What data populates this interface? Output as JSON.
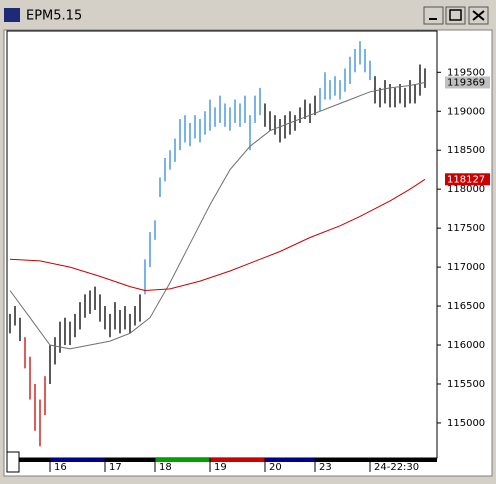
{
  "window": {
    "title": "EPM5.15"
  },
  "chart_data": {
    "type": "ohlc",
    "high": [
      116400,
      116500,
      116350,
      116100,
      115850,
      115500,
      115300,
      115600,
      116000,
      116100,
      116300,
      116350,
      116300,
      116400,
      116550,
      116650,
      116700,
      116750,
      116650,
      116500,
      116400,
      116550,
      116450,
      116500,
      116400,
      116500,
      116650,
      117100,
      117450,
      117600,
      118150,
      118400,
      118500,
      118650,
      118900,
      118950,
      118850,
      118950,
      118900,
      119000,
      119150,
      119050,
      119200,
      119100,
      119050,
      119150,
      119100,
      119200,
      118950,
      119200,
      119300,
      119100,
      119000,
      118950,
      118900,
      118950,
      119000,
      118950,
      119050,
      119150,
      119100,
      119200,
      119300,
      119500,
      119400,
      119450,
      119400,
      119550,
      119700,
      119800,
      119900,
      119800,
      119650,
      119450,
      119300,
      119400,
      119350,
      119300,
      119350,
      119300,
      119400,
      119350,
      119600,
      119550
    ],
    "low": [
      116150,
      116250,
      116050,
      115700,
      115300,
      114900,
      114700,
      115100,
      115500,
      115750,
      115900,
      116000,
      116000,
      116100,
      116200,
      116350,
      116400,
      116450,
      116300,
      116200,
      116100,
      116200,
      116150,
      116200,
      116150,
      116250,
      116300,
      116650,
      117000,
      117350,
      117900,
      118100,
      118250,
      118350,
      118500,
      118600,
      118550,
      118650,
      118600,
      118700,
      118750,
      118800,
      118850,
      118800,
      118750,
      118850,
      118800,
      118850,
      118500,
      118850,
      118950,
      118800,
      118750,
      118700,
      118600,
      118650,
      118700,
      118750,
      118850,
      118900,
      118850,
      118950,
      119000,
      119150,
      119150,
      119200,
      119150,
      119250,
      119350,
      119500,
      119600,
      119500,
      119400,
      119100,
      119050,
      119100,
      119050,
      119050,
      119100,
      119050,
      119100,
      119100,
      119200,
      119300
    ],
    "bar_colors": "kkkrrrrrkkkkkkkkkkkkkkkkkkkbbbbbbbbbbbbbbbbbbbbbbbbkkkkkkkkkkkbbbbbbbbbbbkkkkkkkkkkk",
    "palette": {
      "k": "#000000",
      "r": "#d40000",
      "b": "#2f8be0"
    },
    "lines": [
      {
        "color": "#707070",
        "x": [
          0,
          4,
          8,
          12,
          16,
          20,
          24,
          28,
          32,
          36,
          40,
          44,
          48,
          52,
          56,
          60,
          64,
          68,
          72,
          76,
          80,
          83
        ],
        "values": [
          116700,
          116350,
          116000,
          115950,
          116000,
          116050,
          116150,
          116350,
          116800,
          117300,
          117800,
          118250,
          118550,
          118750,
          118850,
          118950,
          119050,
          119150,
          119250,
          119300,
          119330,
          119369
        ]
      },
      {
        "color": "#cc0000",
        "x": [
          0,
          6,
          12,
          18,
          24,
          27,
          32,
          38,
          44,
          48,
          54,
          60,
          66,
          70,
          76,
          80,
          83
        ],
        "values": [
          117100,
          117080,
          117000,
          116880,
          116750,
          116700,
          116720,
          116820,
          116950,
          117050,
          117200,
          117380,
          117530,
          117650,
          117850,
          118000,
          118127
        ]
      }
    ],
    "markers": [
      {
        "value": 119369,
        "color": "#c0c0c0"
      },
      {
        "value": 118127,
        "color": "#cc0000"
      }
    ],
    "xlim": [
      -0.4,
      85.4
    ],
    "xticks": [
      {
        "value": 8,
        "label": "16"
      },
      {
        "value": 19,
        "label": "17"
      },
      {
        "value": 29,
        "label": "18"
      },
      {
        "value": 40,
        "label": "19"
      },
      {
        "value": 51,
        "label": "20"
      },
      {
        "value": 61,
        "label": "23"
      },
      {
        "value": 72,
        "label": "24-22:30"
      }
    ],
    "xtick_colors": [
      "#00008b",
      "#000000",
      "#00a000",
      "#cc0000",
      "#00008b",
      "#000000",
      "#000000"
    ],
    "ylim": [
      114550,
      120030
    ],
    "yticks": [
      115000,
      115500,
      116000,
      116500,
      117000,
      117500,
      118000,
      118500,
      119000,
      119500
    ]
  }
}
